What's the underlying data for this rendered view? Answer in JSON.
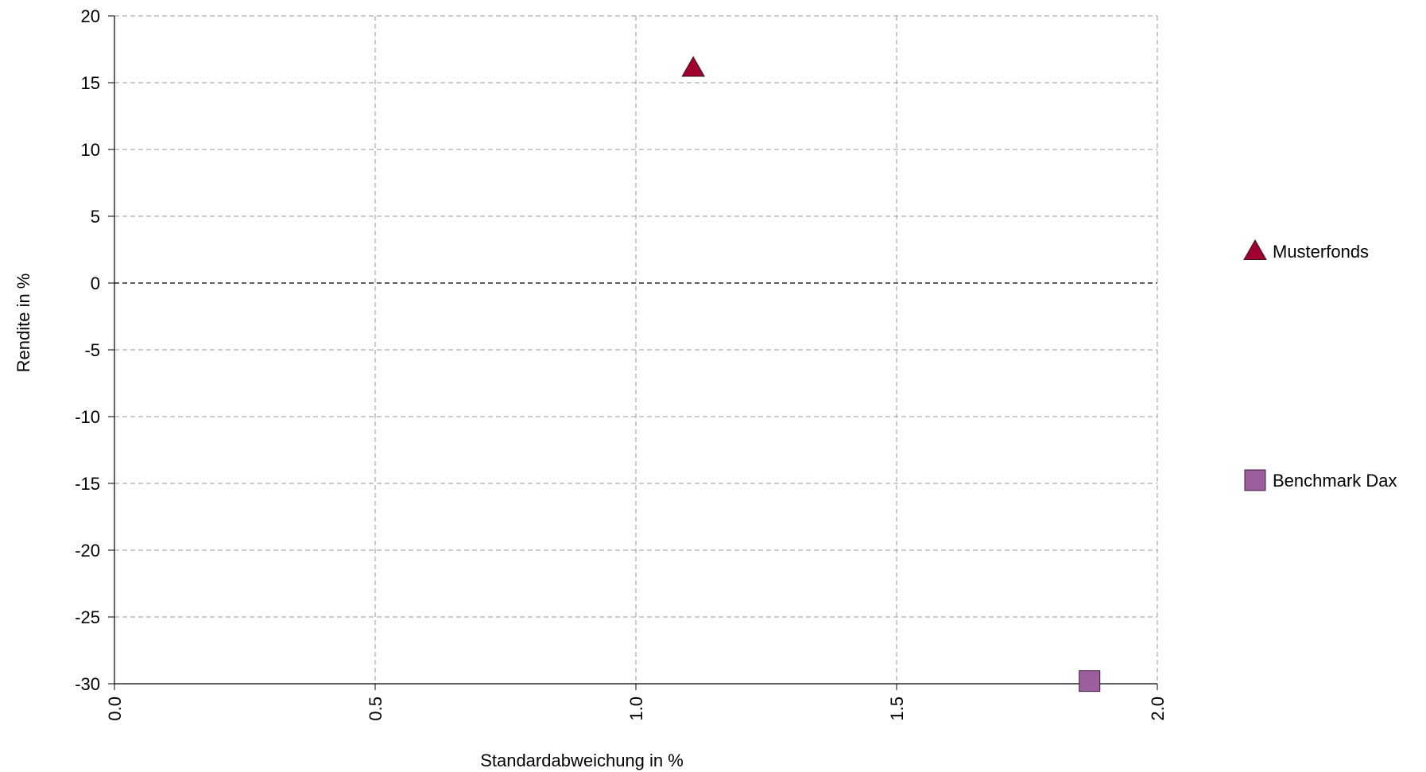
{
  "chart_data": {
    "type": "scatter",
    "xlabel": "Standardabweichung in %",
    "ylabel": "Rendite in %",
    "xlim": [
      0,
      2
    ],
    "ylim": [
      -30,
      20
    ],
    "x_ticks": [
      "0.0",
      "0.5",
      "1.0",
      "1.5",
      "2.0"
    ],
    "y_ticks": [
      "20",
      "15",
      "10",
      "5",
      "0",
      "-5",
      "-10",
      "-15",
      "-20",
      "-25",
      "-30"
    ],
    "grid": true,
    "legend_position": "right",
    "series": [
      {
        "name": "Musterfonds",
        "marker": "triangle",
        "color": "#a0002f",
        "points": [
          {
            "x": 1.11,
            "y": 16.1
          }
        ]
      },
      {
        "name": "Benchmark Dax",
        "marker": "square",
        "color": "#9b5f9f",
        "points": [
          {
            "x": 1.87,
            "y": -29.8
          }
        ]
      }
    ]
  }
}
